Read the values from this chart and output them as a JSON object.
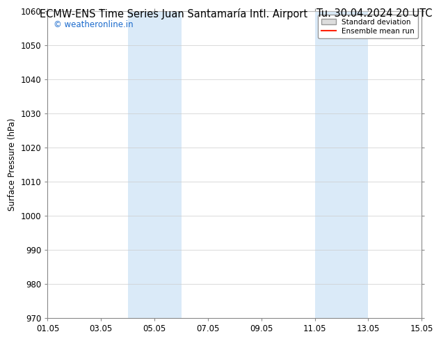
{
  "title_left": "ECMW-ENS Time Series Juan Santamaría Intl. Airport",
  "title_right": "Tu. 30.04.2024 20 UTC",
  "ylabel": "Surface Pressure (hPa)",
  "watermark": "© weatheronline.in",
  "watermark_color": "#1A6ACC",
  "ylim": [
    970,
    1060
  ],
  "yticks": [
    970,
    980,
    990,
    1000,
    1010,
    1020,
    1030,
    1040,
    1050,
    1060
  ],
  "xlim": [
    0,
    14
  ],
  "xtick_labels": [
    "01.05",
    "03.05",
    "05.05",
    "07.05",
    "09.05",
    "11.05",
    "13.05",
    "15.05"
  ],
  "xtick_positions": [
    0,
    2,
    4,
    6,
    8,
    10,
    12,
    14
  ],
  "shaded_regions": [
    {
      "start": 3.0,
      "end": 5.0
    },
    {
      "start": 10.0,
      "end": 12.0
    }
  ],
  "shaded_color": "#DAEAF8",
  "bg_color": "#FFFFFF",
  "plot_bg_color": "#FFFFFF",
  "grid_color": "#CCCCCC",
  "legend_std_facecolor": "#DDDDDD",
  "legend_std_edgecolor": "#999999",
  "legend_mean_color": "#FF2200",
  "title_fontsize": 10.5,
  "axis_fontsize": 8.5,
  "watermark_fontsize": 8.5
}
